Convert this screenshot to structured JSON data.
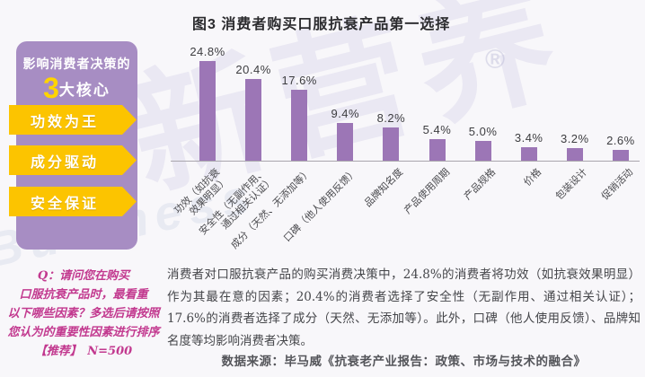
{
  "title": "图3 消费者购买口服抗衰产品第一选择",
  "sidebar": {
    "heading_line1": "影响消费者决策的",
    "heading_number": "3",
    "heading_suffix": "大核心",
    "banners": [
      {
        "label": "功效为王"
      },
      {
        "label": "成分驱动"
      },
      {
        "label": "安全保证"
      }
    ]
  },
  "chart_data": {
    "type": "bar",
    "title": "图3 消费者购买口服抗衰产品第一选择",
    "categories": [
      "功效（如抗衰\n效果明显）",
      "安全性（无副作用、\n通过相关认证）",
      "成分（天然、无添加等）",
      "口碑（他人使用反馈）",
      "品牌知名度",
      "产品使用周期",
      "产品规格",
      "价格",
      "包装设计",
      "促销活动"
    ],
    "values": [
      24.8,
      20.4,
      17.6,
      9.4,
      8.2,
      5.4,
      5.0,
      3.4,
      3.2,
      2.6
    ],
    "value_labels": [
      "24.8%",
      "20.4%",
      "17.6%",
      "9.4%",
      "8.2%",
      "5.4%",
      "5.0%",
      "3.4%",
      "3.2%",
      "2.6%"
    ],
    "unit": "%",
    "ylim": [
      0,
      27
    ],
    "bar_color": "#9c76b6",
    "grid": false,
    "legend_position": "none",
    "xlabel": "",
    "ylabel": ""
  },
  "question": {
    "text": "Q：请问您在购买\n口服抗衰产品时，最看重\n以下哪些因素？多选后请按照\n您认为的重要性因素进行排序\n【推荐】　N=500"
  },
  "analysis": {
    "text": "消费者对口服抗衰产品的购买消费决策中，24.8%的消费者将功效（如抗衰效果明显）作为其最在意的因素；20.4%的消费者选择了安全性（无副作用、通过相关认证）；17.6%的消费者选择了成分（天然、无添加等）。此外，口碑（他人使用反馈）、品牌知名度等均影响消费者决策。"
  },
  "source": {
    "text": "数据来源：毕马威《抗衰老产业报告：政策、市场与技术的融合》"
  },
  "watermark": {
    "cjk": "新营养",
    "latin": "Business",
    "reg": "®"
  },
  "colors": {
    "background": "#f8f7fa",
    "bar": "#9c76b6",
    "panel": "#a78dc3",
    "banner_yellow": "#fcc400",
    "question_text": "#c2398f",
    "body_text": "#45464a"
  }
}
